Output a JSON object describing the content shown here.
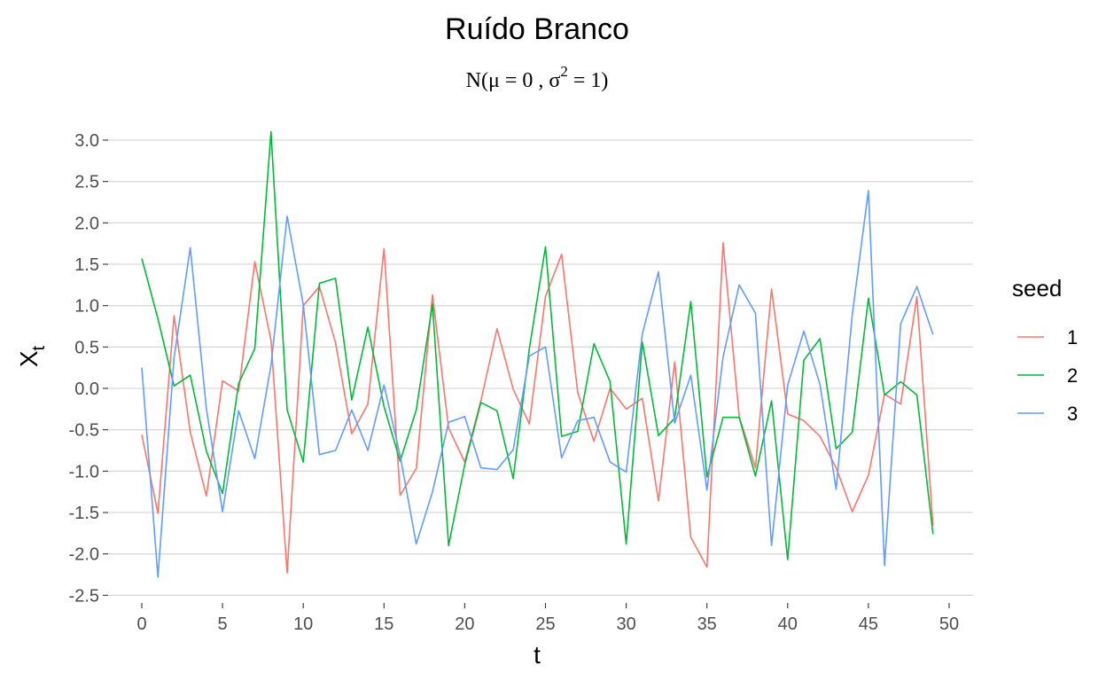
{
  "chart_data": {
    "type": "line",
    "title": "Ruído Branco",
    "subtitle": {
      "prefix": "N(μ = 0 , σ",
      "superscript": "2",
      "suffix": " = 1)"
    },
    "xlabel": "t",
    "ylabel": {
      "base": "X",
      "subscript": "t"
    },
    "xlim": [
      -2,
      51
    ],
    "ylim": [
      -2.5,
      3.1
    ],
    "x_ticks": [
      0,
      5,
      10,
      15,
      20,
      25,
      30,
      35,
      40,
      45,
      50
    ],
    "x_tick_labels": [
      "0",
      "5",
      "10",
      "15",
      "20",
      "25",
      "30",
      "35",
      "40",
      "45",
      "50"
    ],
    "y_ticks": [
      -2.5,
      -2.0,
      -1.5,
      -1.0,
      -0.5,
      0.0,
      0.5,
      1.0,
      1.5,
      2.0,
      2.5,
      3.0
    ],
    "y_tick_labels": [
      "-2.5",
      "-2.0",
      "-1.5",
      "-1.0",
      "-0.5",
      "0.0",
      "0.5",
      "1.0",
      "1.5",
      "2.0",
      "2.5",
      "3.0"
    ],
    "grid": "horizontal",
    "legend": {
      "title": "seed",
      "position": "right"
    },
    "x": [
      0,
      1,
      2,
      3,
      4,
      5,
      6,
      7,
      8,
      9,
      10,
      11,
      12,
      13,
      14,
      15,
      16,
      17,
      18,
      19,
      20,
      21,
      22,
      23,
      24,
      25,
      26,
      27,
      28,
      29,
      30,
      31,
      32,
      33,
      34,
      35,
      36,
      37,
      38,
      39,
      40,
      41,
      42,
      43,
      44,
      45,
      46,
      47,
      48,
      49
    ],
    "series": [
      {
        "name": "1",
        "color": "#F8766D",
        "values": [
          -0.56,
          -1.51,
          0.88,
          -0.53,
          -1.3,
          0.09,
          -0.03,
          1.53,
          0.58,
          -2.23,
          1.0,
          1.23,
          0.55,
          -0.55,
          -0.19,
          1.69,
          -1.29,
          -0.97,
          1.13,
          -0.48,
          -0.89,
          -0.15,
          0.72,
          -0.01,
          -0.43,
          1.11,
          1.62,
          -0.05,
          -0.64,
          0.0,
          -0.25,
          -0.12,
          -1.36,
          0.32,
          -1.8,
          -2.16,
          1.76,
          -0.34,
          -0.96,
          1.2,
          -0.31,
          -0.39,
          -0.58,
          -0.96,
          -1.49,
          -1.05,
          -0.07,
          -0.19,
          1.11,
          -1.66
        ]
      },
      {
        "name": "2",
        "color": "#00BA38",
        "values": [
          1.57,
          0.84,
          0.03,
          0.16,
          -0.76,
          -1.27,
          0.06,
          0.48,
          3.1,
          -0.26,
          -0.89,
          1.27,
          1.33,
          -0.14,
          0.74,
          -0.22,
          -0.88,
          -0.26,
          1.02,
          -1.9,
          -0.92,
          -0.17,
          -0.27,
          -1.09,
          0.48,
          1.71,
          -0.58,
          -0.52,
          0.54,
          0.08,
          -1.88,
          0.56,
          -0.57,
          -0.36,
          1.05,
          -1.07,
          -0.35,
          -0.35,
          -1.06,
          -0.15,
          -2.07,
          0.34,
          0.6,
          -0.73,
          -0.53,
          1.09,
          -0.08,
          0.08,
          -0.08,
          -1.76
        ]
      },
      {
        "name": "3",
        "color": "#619CFF",
        "values": [
          0.25,
          -2.28,
          0.37,
          1.7,
          -0.25,
          -1.49,
          -0.27,
          -0.85,
          0.28,
          2.08,
          1.01,
          -0.8,
          -0.75,
          -0.26,
          -0.75,
          0.04,
          -0.81,
          -1.88,
          -1.25,
          -0.41,
          -0.34,
          -0.96,
          -0.98,
          -0.74,
          0.39,
          0.5,
          -0.84,
          -0.39,
          -0.35,
          -0.89,
          -1.01,
          0.66,
          1.41,
          -0.42,
          0.16,
          -1.23,
          0.38,
          1.25,
          0.91,
          -1.9,
          0.04,
          0.69,
          0.05,
          -1.22,
          0.89,
          2.39,
          -2.14,
          0.78,
          1.23,
          0.65
        ]
      }
    ]
  }
}
